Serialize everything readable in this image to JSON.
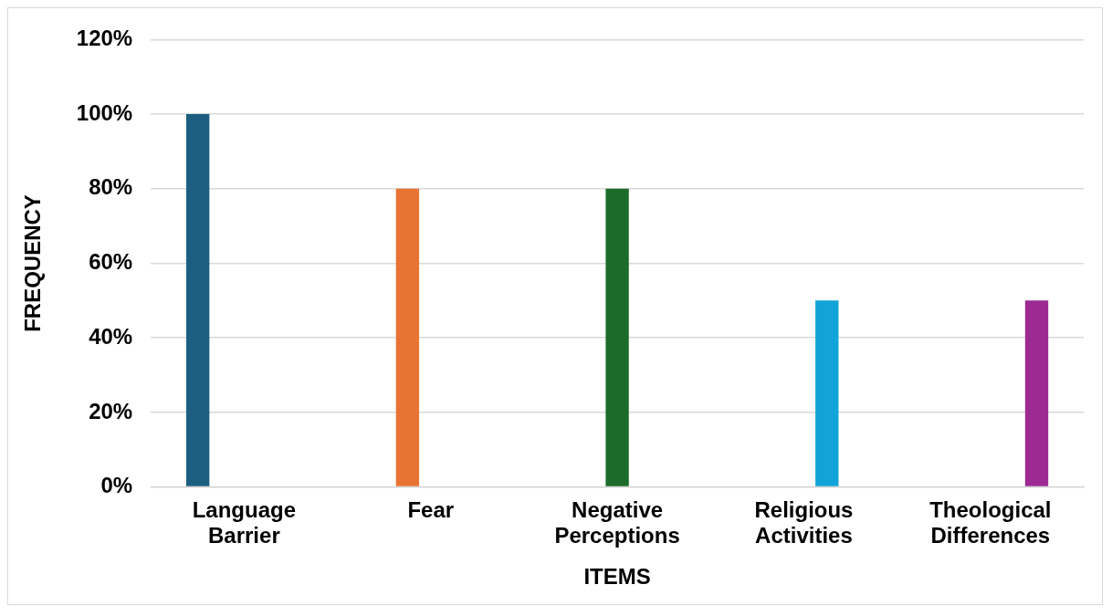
{
  "chart_data": {
    "type": "bar",
    "xlabel": "ITEMS",
    "ylabel": "FREQUENCY",
    "categories": [
      "Language Barrier",
      "Fear",
      "Negative Perceptions",
      "Religious Activities",
      "Theological Differences"
    ],
    "series": [
      {
        "color": "#1b5e80",
        "values": [
          100,
          null,
          null,
          null,
          null
        ]
      },
      {
        "color": "#e97333",
        "values": [
          null,
          80,
          null,
          null,
          null
        ]
      },
      {
        "color": "#1c6b2a",
        "values": [
          null,
          null,
          80,
          null,
          null
        ]
      },
      {
        "color": "#12a3d8",
        "values": [
          null,
          null,
          null,
          50,
          null
        ]
      },
      {
        "color": "#9c2a93",
        "values": [
          null,
          null,
          null,
          null,
          50
        ]
      }
    ],
    "ylim": [
      0,
      120
    ],
    "yticks": [
      {
        "value": 0,
        "label": "0%"
      },
      {
        "value": 20,
        "label": "20%"
      },
      {
        "value": 40,
        "label": "40%"
      },
      {
        "value": 60,
        "label": "60%"
      },
      {
        "value": 80,
        "label": "80%"
      },
      {
        "value": 100,
        "label": "100%"
      },
      {
        "value": 120,
        "label": "120%"
      }
    ],
    "grid": "y",
    "legend": false
  }
}
